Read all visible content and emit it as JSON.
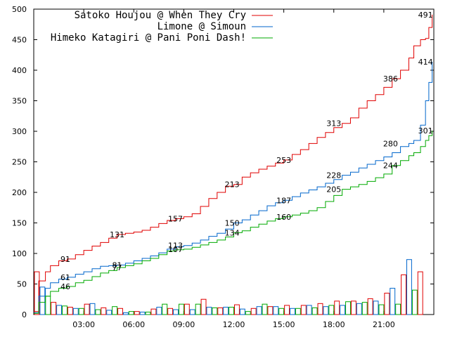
{
  "chart_data": {
    "type": "line",
    "xlabel": "",
    "ylabel": "",
    "xlim": [
      0,
      24
    ],
    "ylim": [
      0,
      500
    ],
    "x_ticks": [
      {
        "value": 3,
        "label": "03:00"
      },
      {
        "value": 6,
        "label": "06:00"
      },
      {
        "value": 9,
        "label": "09:00"
      },
      {
        "value": 12,
        "label": "12:00"
      },
      {
        "value": 15,
        "label": "15:00"
      },
      {
        "value": 18,
        "label": "18:00"
      },
      {
        "value": 21,
        "label": "21:00"
      }
    ],
    "y_ticks": [
      0,
      50,
      100,
      150,
      200,
      250,
      300,
      350,
      400,
      450,
      500
    ],
    "legend_position": "top-left",
    "series": [
      {
        "name": "Satoko Houjou @ When They Cry",
        "color": "#e00000",
        "x": [
          0,
          0.3,
          0.7,
          1,
          1.5,
          2,
          2.5,
          3,
          3.5,
          4,
          4.5,
          5,
          5.5,
          6,
          6.5,
          7,
          7.5,
          8,
          8.5,
          9,
          9.5,
          10,
          10.5,
          11,
          11.5,
          12,
          12.5,
          13,
          13.5,
          14,
          14.5,
          15,
          15.5,
          16,
          16.5,
          17,
          17.5,
          18,
          18.5,
          19,
          19.5,
          20,
          20.5,
          21,
          21.5,
          22,
          22.5,
          22.8,
          23.2,
          23.5,
          23.7,
          23.9
        ],
        "y": [
          5,
          55,
          70,
          80,
          88,
          91,
          98,
          105,
          112,
          118,
          125,
          131,
          133,
          135,
          138,
          143,
          149,
          154,
          157,
          160,
          165,
          177,
          190,
          200,
          210,
          213,
          225,
          232,
          238,
          243,
          248,
          253,
          262,
          270,
          280,
          290,
          298,
          306,
          313,
          322,
          338,
          350,
          360,
          372,
          386,
          400,
          420,
          440,
          450,
          452,
          470,
          491
        ],
        "point_labels": [
          {
            "x": 1.9,
            "y": 91,
            "label": "91"
          },
          {
            "x": 5,
            "y": 131,
            "label": "131"
          },
          {
            "x": 8.5,
            "y": 157,
            "label": "157"
          },
          {
            "x": 11.9,
            "y": 213,
            "label": "213"
          },
          {
            "x": 15,
            "y": 253,
            "label": "253"
          },
          {
            "x": 18,
            "y": 313,
            "label": "313"
          },
          {
            "x": 21.4,
            "y": 386,
            "label": "386"
          },
          {
            "x": 23.5,
            "y": 491,
            "label": "491"
          }
        ]
      },
      {
        "name": "Limone @ Simoun",
        "color": "#0066cc",
        "x": [
          0,
          0.3,
          0.7,
          1,
          1.5,
          2,
          2.5,
          3,
          3.5,
          4,
          4.5,
          5,
          5.5,
          6,
          6.5,
          7,
          7.5,
          8,
          8.5,
          9,
          9.5,
          10,
          10.5,
          11,
          11.5,
          12,
          12.5,
          13,
          13.5,
          14,
          14.5,
          15,
          15.5,
          16,
          16.5,
          17,
          17.5,
          18,
          18.5,
          19,
          19.5,
          20,
          20.5,
          21,
          21.5,
          22,
          22.5,
          22.8,
          23.2,
          23.5,
          23.7,
          23.9
        ],
        "y": [
          3,
          30,
          43,
          52,
          58,
          61,
          66,
          70,
          75,
          79,
          80,
          81,
          84,
          88,
          92,
          96,
          101,
          107,
          111,
          113,
          117,
          122,
          128,
          133,
          140,
          150,
          155,
          163,
          170,
          178,
          183,
          187,
          193,
          199,
          204,
          209,
          215,
          221,
          228,
          233,
          240,
          246,
          252,
          258,
          265,
          275,
          280,
          285,
          310,
          350,
          380,
          414
        ],
        "point_labels": [
          {
            "x": 1.9,
            "y": 61,
            "label": "61"
          },
          {
            "x": 5,
            "y": 81,
            "label": "81"
          },
          {
            "x": 8.5,
            "y": 113,
            "label": "113"
          },
          {
            "x": 11.9,
            "y": 150,
            "label": "150"
          },
          {
            "x": 15,
            "y": 187,
            "label": "187"
          },
          {
            "x": 18,
            "y": 228,
            "label": "228"
          },
          {
            "x": 21.4,
            "y": 280,
            "label": "280"
          },
          {
            "x": 23.5,
            "y": 414,
            "label": "414"
          }
        ]
      },
      {
        "name": "Himeko Katagiri @ Pani Poni Dash!",
        "color": "#00aa00",
        "x": [
          0,
          0.3,
          0.7,
          1,
          1.5,
          2,
          2.5,
          3,
          3.5,
          4,
          4.5,
          5,
          5.5,
          6,
          6.5,
          7,
          7.5,
          8,
          8.5,
          9,
          9.5,
          10,
          10.5,
          11,
          11.5,
          12,
          12.5,
          13,
          13.5,
          14,
          14.5,
          15,
          15.5,
          16,
          16.5,
          17,
          17.5,
          18,
          18.5,
          19,
          19.5,
          20,
          20.5,
          21,
          21.5,
          22,
          22.5,
          22.8,
          23.2,
          23.5,
          23.7,
          23.9
        ],
        "y": [
          2,
          20,
          30,
          38,
          43,
          46,
          52,
          56,
          62,
          68,
          72,
          77,
          80,
          83,
          88,
          92,
          98,
          104,
          106,
          107,
          110,
          114,
          118,
          122,
          127,
          134,
          137,
          143,
          148,
          153,
          157,
          160,
          163,
          166,
          170,
          175,
          185,
          195,
          205,
          209,
          213,
          218,
          224,
          230,
          244,
          252,
          260,
          265,
          275,
          285,
          293,
          301
        ],
        "point_labels": [
          {
            "x": 1.9,
            "y": 46,
            "label": "46"
          },
          {
            "x": 5,
            "y": 77,
            "label": "77"
          },
          {
            "x": 8.5,
            "y": 107,
            "label": "107"
          },
          {
            "x": 11.9,
            "y": 134,
            "label": "134"
          },
          {
            "x": 15,
            "y": 160,
            "label": "160"
          },
          {
            "x": 18,
            "y": 205,
            "label": "205"
          },
          {
            "x": 21.4,
            "y": 244,
            "label": "244"
          },
          {
            "x": 23.5,
            "y": 301,
            "label": "301"
          }
        ]
      }
    ],
    "bars": {
      "bin_start": [
        0,
        1,
        2,
        3,
        4,
        5,
        6,
        7,
        8,
        9,
        10,
        11,
        12,
        13,
        14,
        15,
        16,
        17,
        18,
        19,
        20,
        21,
        22,
        23
      ],
      "red": [
        70,
        20,
        12,
        17,
        11,
        10,
        5,
        9,
        10,
        17,
        25,
        11,
        16,
        10,
        13,
        15,
        15,
        18,
        22,
        22,
        26,
        35,
        65,
        70
      ],
      "blue": [
        45,
        15,
        10,
        18,
        7,
        3,
        4,
        12,
        8,
        8,
        12,
        12,
        9,
        13,
        13,
        10,
        15,
        13,
        15,
        18,
        22,
        43,
        90,
        0
      ],
      "green": [
        30,
        14,
        10,
        8,
        13,
        5,
        4,
        17,
        17,
        17,
        11,
        12,
        5,
        17,
        10,
        10,
        11,
        15,
        21,
        20,
        16,
        17,
        40,
        0
      ]
    }
  }
}
